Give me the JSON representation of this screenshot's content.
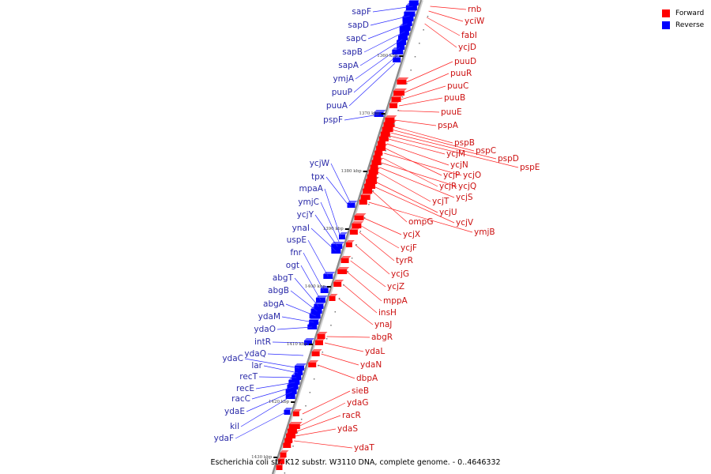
{
  "legend": {
    "forward": {
      "label": "Forward",
      "color": "#ff0000"
    },
    "reverse": {
      "label": "Reverse",
      "color": "#0000ff"
    }
  },
  "caption": "Escherichia coli str. K12 substr. W3110 DNA, complete genome. - 0..4646332",
  "ticks": [
    "1360 kbp",
    "1370 kbp",
    "1380 kbp",
    "1390 kbp",
    "1400 kbp",
    "1410 kbp",
    "1420 kbp",
    "1430 kbp"
  ],
  "reverse_genes": [
    "sapF",
    "sapD",
    "sapC",
    "sapB",
    "sapA",
    "ymjA",
    "puuP",
    "puuA",
    "pspF",
    "ycjW",
    "tpx",
    "mpaA",
    "ymjC",
    "ycjY",
    "ynaI",
    "uspE",
    "fnr",
    "ogt",
    "abgT",
    "abgB",
    "abgA",
    "ydaM",
    "ydaO",
    "intR",
    "ydaQ",
    "ydaC",
    "lar",
    "recT",
    "recE",
    "racC",
    "ydaE",
    "kil",
    "ydaF"
  ],
  "forward_genes": [
    "rnb",
    "yciW",
    "fabI",
    "ycjD",
    "puuD",
    "puuR",
    "puuC",
    "puuB",
    "puuE",
    "pspA",
    "pspB",
    "pspC",
    "pspD",
    "pspE",
    "ycjM",
    "ycjN",
    "ycjP",
    "ycjO",
    "ycjR",
    "ycjQ",
    "ycjS",
    "ycjT",
    "ycjU",
    "ycjV",
    "ompG",
    "ymjB",
    "ycjX",
    "ycjF",
    "tyrR",
    "ycjG",
    "ycjZ",
    "mppA",
    "insH",
    "ynaJ",
    "abgR",
    "ydaL",
    "ydaN",
    "dbpA",
    "sieB",
    "ydaG",
    "racR",
    "ydaS",
    "ydaT"
  ]
}
